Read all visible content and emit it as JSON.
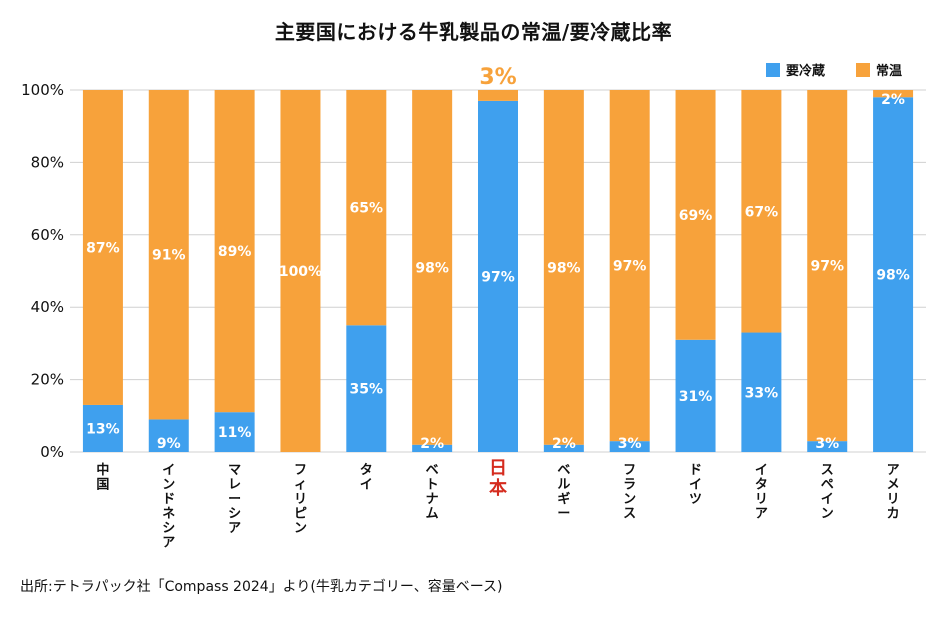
{
  "title": "主要国における牛乳製品の常温/要冷蔵比率",
  "source": "出所:テトラパック社「Compass 2024」より(牛乳カテゴリー、容量ベース)",
  "colors": {
    "refrigerated": "#3fa0ee",
    "ambient": "#f7a23b",
    "highlight_label": "#d52b1e",
    "grid": "#d0d0d0"
  },
  "chart_data": {
    "type": "bar",
    "stacked": true,
    "categories": [
      "中国",
      "インドネシア",
      "マレーシア",
      "フィリピン",
      "タイ",
      "ベトナム",
      "日本",
      "ベルギー",
      "フランス",
      "ドイツ",
      "イタリア",
      "スペイン",
      "アメリカ"
    ],
    "highlight_category": "日本",
    "series": [
      {
        "name": "要冷蔵",
        "values": [
          13,
          9,
          11,
          0,
          35,
          2,
          97,
          2,
          3,
          31,
          33,
          3,
          98
        ],
        "labels": [
          "13%",
          "9%",
          "11%",
          "",
          "35%",
          "2%",
          "97%",
          "2%",
          "3%",
          "31%",
          "33%",
          "3%",
          "98%"
        ]
      },
      {
        "name": "常温",
        "values": [
          87,
          91,
          89,
          100,
          65,
          98,
          3,
          98,
          97,
          69,
          67,
          97,
          2
        ],
        "labels": [
          "87%",
          "91%",
          "89%",
          "100%",
          "65%",
          "98%",
          "3%",
          "98%",
          "97%",
          "69%",
          "67%",
          "97%",
          "2%"
        ]
      }
    ],
    "ylim": [
      0,
      100
    ],
    "yticks": [
      "0%",
      "20%",
      "40%",
      "60%",
      "80%",
      "100%"
    ],
    "grid": true,
    "legend": "top-right"
  }
}
